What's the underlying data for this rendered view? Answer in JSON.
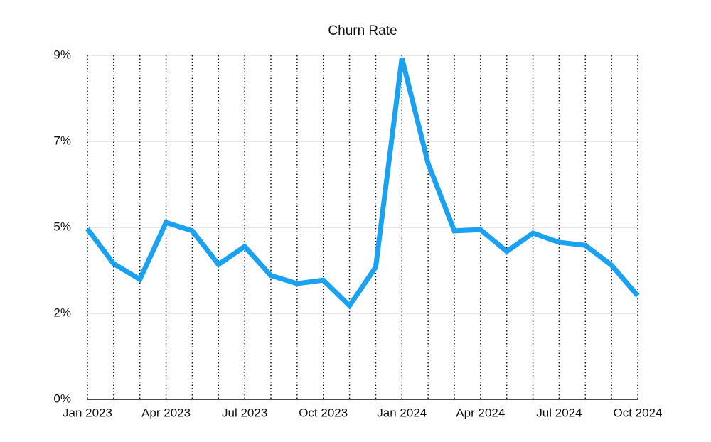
{
  "chart_data": {
    "type": "line",
    "title": "Churn Rate",
    "categories": [
      "Jan 2023",
      null,
      null,
      "Apr 2023",
      null,
      null,
      "Jul 2023",
      null,
      null,
      "Oct 2023",
      null,
      null,
      "Jan 2024",
      null,
      null,
      "Apr 2024",
      null,
      null,
      "Jul 2024",
      null,
      null,
      "Oct 2024"
    ],
    "series": [
      {
        "name": "Churn Rate",
        "color": "#1ba1f2",
        "values": [
          4.46,
          3.55,
          3.14,
          4.63,
          4.41,
          3.53,
          4.0,
          3.24,
          3.03,
          3.12,
          2.45,
          3.46,
          8.93,
          6.17,
          4.41,
          4.44,
          3.87,
          4.35,
          4.11,
          4.03,
          3.51,
          2.71
        ]
      }
    ],
    "ylim": [
      0,
      9
    ],
    "yticks": [
      {
        "value": 0,
        "label": "0%"
      },
      {
        "value": 2.25,
        "label": "2%"
      },
      {
        "value": 4.5,
        "label": "5%"
      },
      {
        "value": 6.75,
        "label": "7%"
      },
      {
        "value": 9,
        "label": "9%"
      }
    ],
    "grid": true
  }
}
